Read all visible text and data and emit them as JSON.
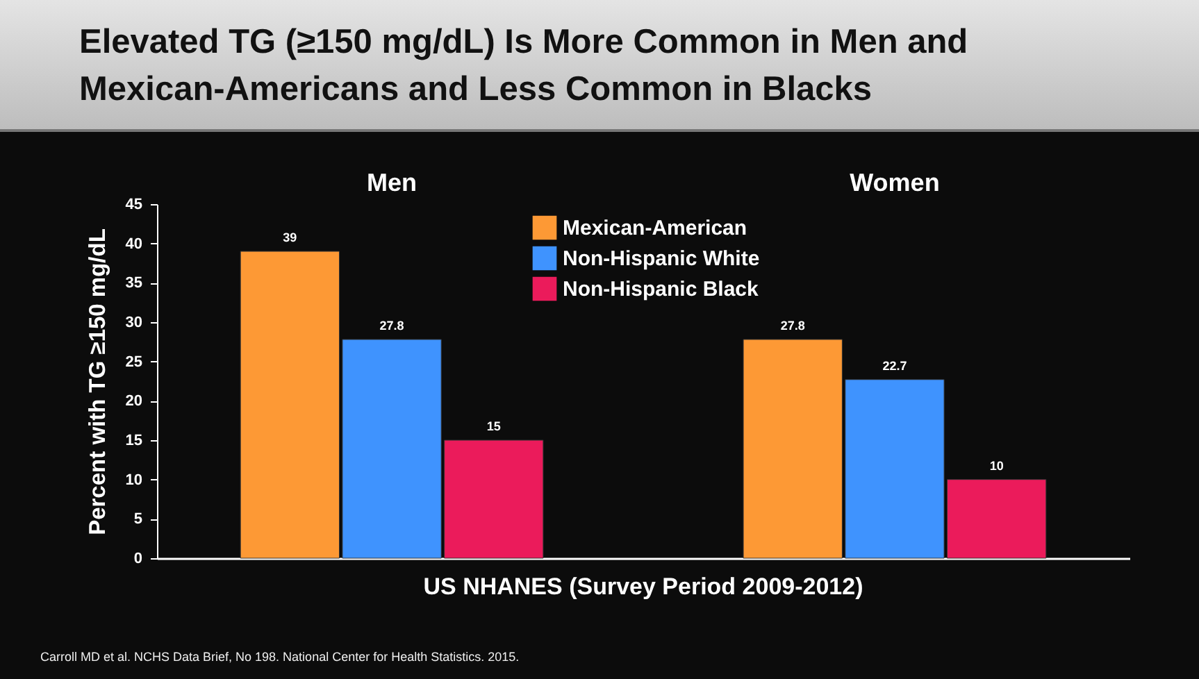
{
  "chart_data": {
    "type": "bar",
    "title": "Elevated TG (≥150 mg/dL) Is More Common in Men and Mexican-Americans and Less Common in Blacks",
    "xlabel": "US NHANES (Survey Period 2009-2012)",
    "ylabel": "Percent with TG ≥150 mg/dL",
    "categories": [
      "Men",
      "Women"
    ],
    "series": [
      {
        "name": "Mexican-American",
        "color": "#fd9935",
        "values": [
          39,
          27.8
        ]
      },
      {
        "name": "Non-Hispanic White",
        "color": "#3f93fe",
        "values": [
          27.8,
          22.7
        ]
      },
      {
        "name": "Non-Hispanic Black",
        "color": "#eb1b5b",
        "values": [
          15,
          10
        ]
      }
    ],
    "ylim": [
      0,
      45
    ],
    "yticks": [
      0,
      5,
      10,
      15,
      20,
      25,
      30,
      35,
      40,
      45
    ],
    "data_labels": true,
    "legend": "top",
    "grid": false,
    "annotations": [
      "Carroll MD et al. NCHS Data Brief, No 198. National Center for Health Statistics. 2015."
    ]
  }
}
